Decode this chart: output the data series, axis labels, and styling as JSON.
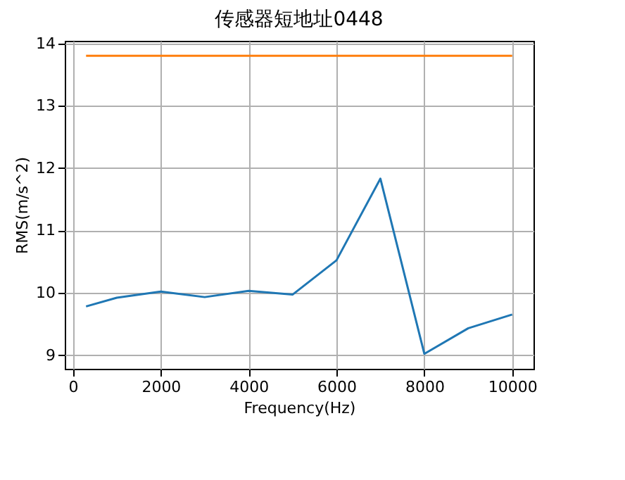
{
  "chart_data": {
    "type": "line",
    "title": "传感器短地址0448",
    "xlabel": "Frequency(Hz)",
    "ylabel": "RMS(m/s^2)",
    "x": [
      300,
      1000,
      2000,
      3000,
      4000,
      5000,
      6000,
      7000,
      8000,
      9000,
      10000
    ],
    "series": [
      {
        "color": "#1f77b4",
        "values": [
          9.78,
          9.92,
          10.02,
          9.93,
          10.03,
          9.97,
          10.52,
          11.83,
          9.02,
          9.43,
          9.65
        ]
      },
      {
        "color": "#ff7f0e",
        "x": [
          300,
          10000
        ],
        "values": [
          13.8,
          13.8
        ]
      }
    ],
    "xlim": [
      -185,
      10485
    ],
    "ylim": [
      8.78,
      14.04
    ],
    "xticks": [
      0,
      2000,
      4000,
      6000,
      8000,
      10000
    ],
    "yticks": [
      9,
      10,
      11,
      12,
      13,
      14
    ],
    "grid": true
  }
}
